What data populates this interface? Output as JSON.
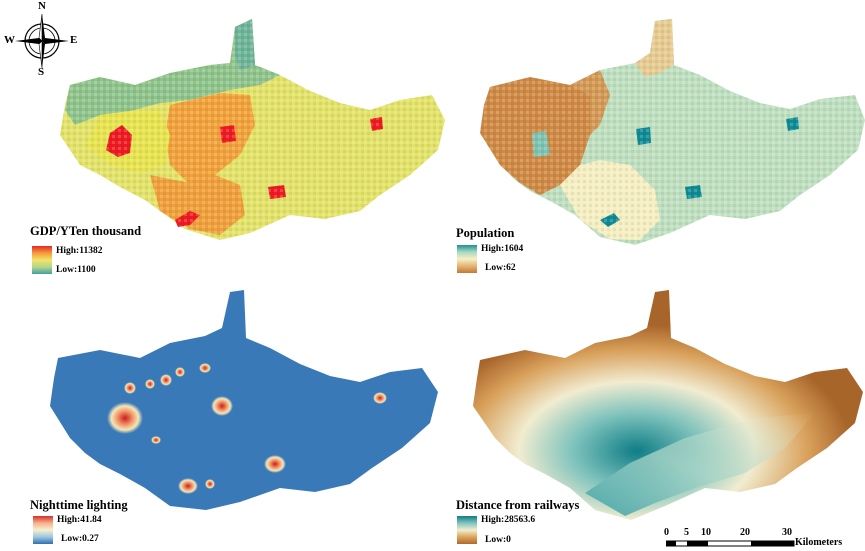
{
  "compass": {
    "north": "N",
    "south": "S",
    "east": "E",
    "west": "W"
  },
  "panels": [
    {
      "id": "gdp",
      "title": "GDP/YTen thousand",
      "high": "High:11382",
      "low": "Low:1100",
      "ramp": [
        "#e8262a",
        "#f59a3a",
        "#f2e46a",
        "#b7d58a",
        "#3fa0a6"
      ]
    },
    {
      "id": "population",
      "title": "Population",
      "high": "High:1604",
      "low": "Low:62",
      "ramp": [
        "#1e8f9a",
        "#a8d8c0",
        "#f6f1c3",
        "#e4b477",
        "#c27a34"
      ]
    },
    {
      "id": "nighttime",
      "title": "Nighttime lighting",
      "high": "High:41.84",
      "low": "Low:0.27",
      "ramp": [
        "#d7302a",
        "#f7b08a",
        "#f7efd0",
        "#9cc6df",
        "#2e6fb3"
      ]
    },
    {
      "id": "railways",
      "title": "Distance from railways",
      "high": "High:28563.6",
      "low": "Low:0",
      "ramp": [
        "#0f7d86",
        "#7fc3bd",
        "#f2edd0",
        "#dca55b",
        "#b06a2a"
      ]
    }
  ],
  "scale_bar": {
    "ticks": [
      "0",
      "5",
      "10",
      "20",
      "30"
    ],
    "unit": "Kilometers"
  }
}
